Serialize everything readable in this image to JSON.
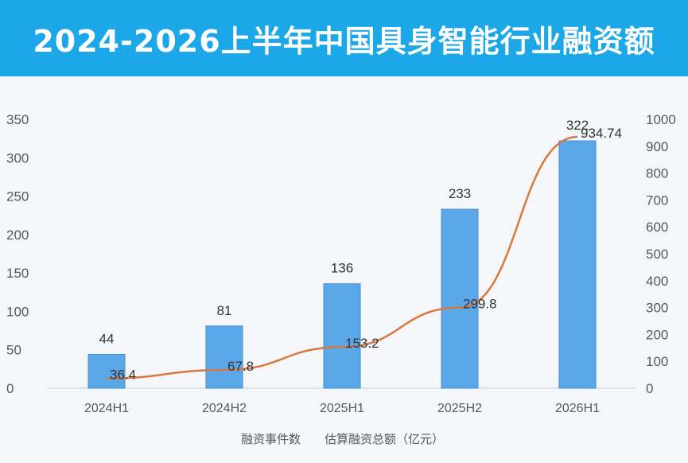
{
  "chart_data": {
    "type": "bar",
    "title": "2024-2026上半年中国具身智能行业融资额",
    "categories": [
      "2024H1",
      "2024H2",
      "2025H1",
      "2025H2",
      "2026H1"
    ],
    "series": [
      {
        "name": "融资事件数",
        "type": "bar",
        "axis": "left",
        "values": [
          44,
          81,
          136,
          233,
          322
        ],
        "labels": [
          "44",
          "81",
          "136",
          "233",
          "322"
        ]
      },
      {
        "name": "估算融资总额（亿元）",
        "type": "line",
        "axis": "right",
        "values": [
          36.4,
          67.8,
          153.2,
          299.8,
          934.74
        ],
        "labels": [
          "36.4",
          "67.8",
          "153.2",
          "299.8",
          "934.74"
        ]
      }
    ],
    "y_left": {
      "min": 0,
      "max": 350,
      "ticks": [
        "0",
        "50",
        "100",
        "150",
        "200",
        "250",
        "300",
        "350"
      ]
    },
    "y_right": {
      "min": 0,
      "max": 1000,
      "ticks": [
        "0",
        "100",
        "200",
        "300",
        "400",
        "500",
        "600",
        "700",
        "800",
        "900",
        "1000"
      ]
    },
    "grid": false,
    "legend_position": "bottom",
    "colors": {
      "bar": "#5aa8e8",
      "line": "#d9773f",
      "banner": "#1ba7e8"
    }
  }
}
